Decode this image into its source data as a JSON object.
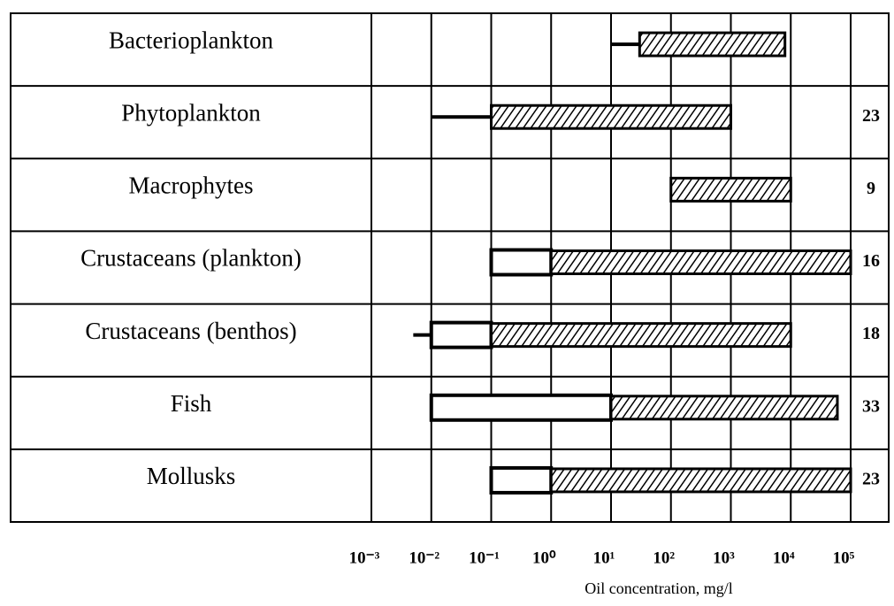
{
  "chart_data": {
    "type": "range_bar",
    "categories": [
      "Bacterioplankton",
      "Phytoplankton",
      "Macrophytes",
      "Crustaceans (plankton)",
      "Crustaceans (benthos)",
      "Fish",
      "Mollusks"
    ],
    "values": [
      null,
      23,
      9,
      16,
      18,
      33,
      23
    ],
    "series": [
      {
        "kind": "line",
        "color": "#000000",
        "starts": [
          10,
          0.01,
          null,
          null,
          0.005,
          null,
          null
        ],
        "ends": [
          30,
          0.1,
          null,
          null,
          0.01,
          null,
          null
        ]
      },
      {
        "kind": "open",
        "color": "#000000",
        "starts": [
          null,
          null,
          null,
          0.1,
          0.01,
          0.01,
          0.1
        ],
        "ends": [
          null,
          null,
          null,
          1,
          0.1,
          10,
          1
        ]
      },
      {
        "kind": "hatched",
        "color": "#000000",
        "starts": [
          30,
          0.1,
          100,
          1,
          0.1,
          10,
          1
        ],
        "ends": [
          8000,
          1000,
          10000,
          100000,
          10000,
          60000,
          100000
        ]
      }
    ],
    "xlabel": "Oil concentration, mg/l",
    "xlog": true,
    "xlim": [
      0.001,
      100000
    ],
    "xticks": [
      {
        "value": 0.001,
        "label": "10⁻³"
      },
      {
        "value": 0.01,
        "label": "10⁻²"
      },
      {
        "value": 0.1,
        "label": "10⁻¹"
      },
      {
        "value": 1,
        "label": "10⁰"
      },
      {
        "value": 10,
        "label": "10¹"
      },
      {
        "value": 100,
        "label": "10²"
      },
      {
        "value": 1000,
        "label": "10³"
      },
      {
        "value": 10000,
        "label": "10⁴"
      },
      {
        "value": 100000,
        "label": "10⁵"
      }
    ],
    "grid": true
  }
}
